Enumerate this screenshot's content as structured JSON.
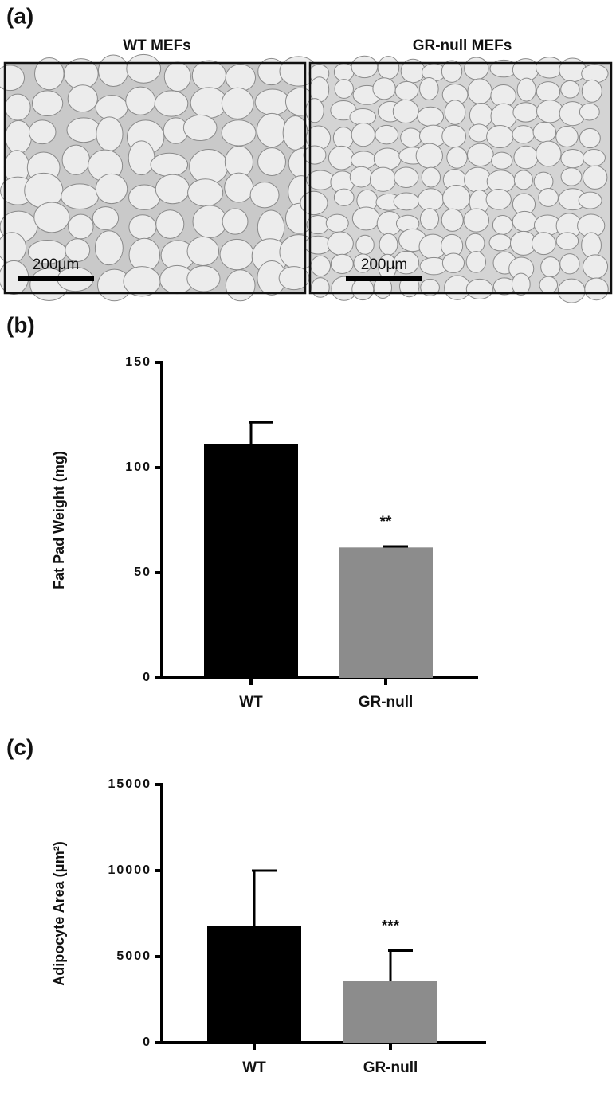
{
  "panel_a": {
    "label": "(a)",
    "images": [
      {
        "title": "WT MEFs",
        "scale_bar": "200μm"
      },
      {
        "title": "GR-null MEFs",
        "scale_bar": "200μm"
      }
    ]
  },
  "chart_data": [
    {
      "type": "bar",
      "label": "(b)",
      "ylabel": "Fat Pad Weight (mg)",
      "categories": [
        "WT",
        "GR-null"
      ],
      "values": [
        111,
        62
      ],
      "errors": [
        10.5,
        0.5
      ],
      "colors": [
        "#000000",
        "#8c8c8c"
      ],
      "annotations": [
        null,
        "**"
      ],
      "ylim": [
        0,
        150
      ],
      "yticks": [
        0,
        50,
        100,
        150
      ]
    },
    {
      "type": "bar",
      "label": "(c)",
      "ylabel": "Adipocyte Area (μm²)",
      "categories": [
        "WT",
        "GR-null"
      ],
      "values": [
        6800,
        3600
      ],
      "errors": [
        3200,
        1750
      ],
      "colors": [
        "#000000",
        "#8c8c8c"
      ],
      "annotations": [
        null,
        "***"
      ],
      "ylim": [
        0,
        15000
      ],
      "yticks": [
        0,
        5000,
        10000,
        15000
      ]
    }
  ]
}
